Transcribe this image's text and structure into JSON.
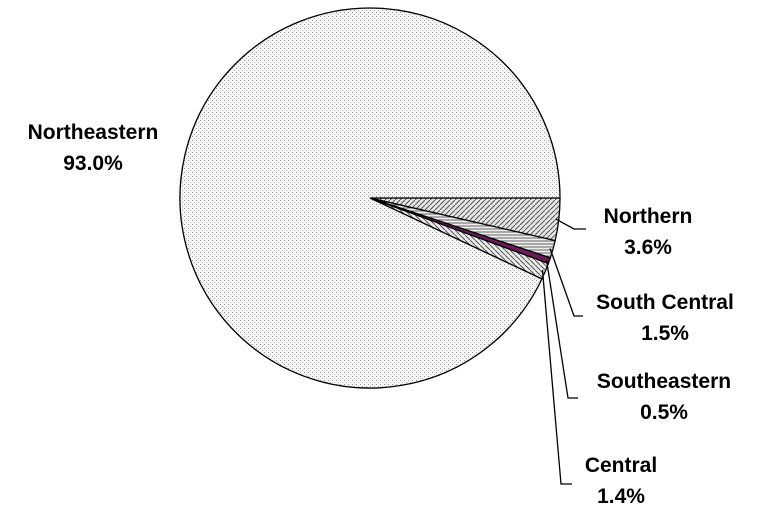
{
  "chart_data": {
    "type": "pie",
    "title": "",
    "start_angle_deg": 0,
    "direction": "clockwise",
    "slices": [
      {
        "name": "Northern",
        "value": 3.6,
        "label": "3.6%",
        "pattern": "diag-left",
        "fill": "#cfcfcf"
      },
      {
        "name": "South Central",
        "value": 1.5,
        "label": "1.5%",
        "pattern": "hlines",
        "fill": "#d8d8d8"
      },
      {
        "name": "Southeastern",
        "value": 0.5,
        "label": "0.5%",
        "pattern": "solid",
        "fill": "#6b1a5c"
      },
      {
        "name": "Central",
        "value": 1.4,
        "label": "1.4%",
        "pattern": "diag-right",
        "fill": "#d0d0d0"
      },
      {
        "name": "Northeastern",
        "value": 93.0,
        "label": "93.0%",
        "pattern": "dots",
        "fill": "#f2f2f2"
      }
    ]
  }
}
